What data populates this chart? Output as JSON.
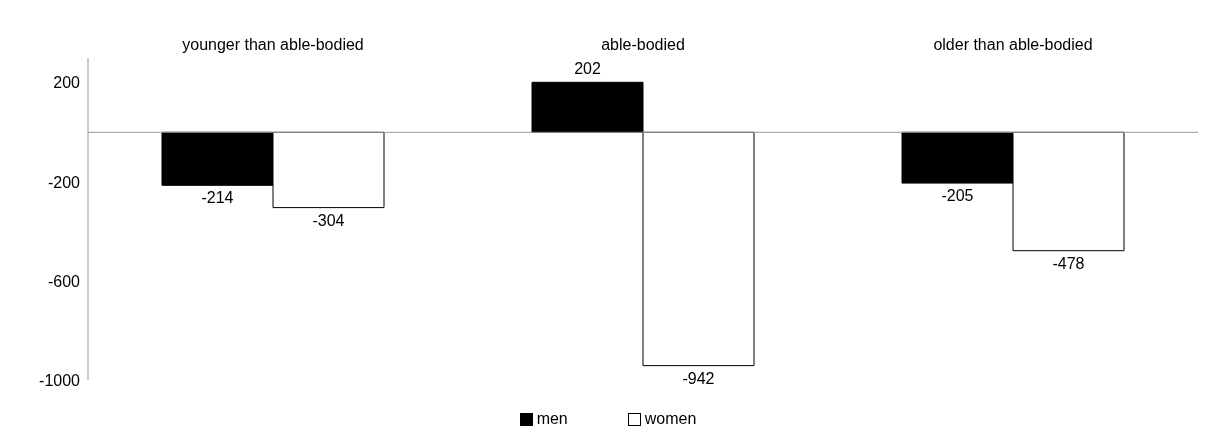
{
  "chart_data": {
    "type": "bar",
    "categories": [
      "younger than able-bodied",
      "able-bodied",
      "older than able-bodied"
    ],
    "series": [
      {
        "name": "men",
        "color": "#000000",
        "values": [
          -214,
          202,
          -205
        ]
      },
      {
        "name": "women",
        "color": "#ffffff",
        "values": [
          -304,
          -942,
          -478
        ]
      }
    ],
    "ylim": [
      -1000,
      300
    ],
    "yticks": [
      -1000,
      -600,
      -200,
      200
    ],
    "grid": false,
    "legend": "bottom",
    "data_labels": true
  }
}
